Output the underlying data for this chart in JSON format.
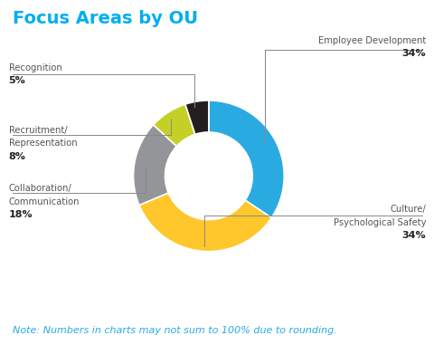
{
  "title": "Focus Areas by OU",
  "title_color": "#00AEEF",
  "title_fontsize": 14,
  "background_color": "#ffffff",
  "slices": [
    {
      "label": "Employee Development",
      "value": 34,
      "color": "#29ABE2",
      "pct": "34%"
    },
    {
      "label": "Culture/\nPsychological Safety",
      "value": 34,
      "color": "#FFC72C",
      "pct": "34%"
    },
    {
      "label": "Collaboration/\nCommunication",
      "value": 18,
      "color": "#939598",
      "pct": "18%"
    },
    {
      "label": "Recruitment/\nRepresentation",
      "value": 8,
      "color": "#C5D027",
      "pct": "8%"
    },
    {
      "label": "Recognition",
      "value": 5,
      "color": "#231F20",
      "pct": "5%"
    }
  ],
  "note": "Note: Numbers in charts may not sum to 100% due to rounding.",
  "note_color": "#29ABE2",
  "note_fontsize": 8
}
